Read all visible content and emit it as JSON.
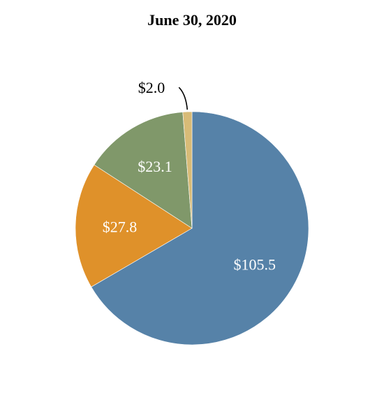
{
  "chart_data": {
    "type": "pie",
    "title": "June 30, 2020",
    "start_angle": "12 o'clock",
    "direction": "clockwise",
    "slices": [
      {
        "label": "$105.5",
        "value": 105.5,
        "color": "#5682a8",
        "label_color": "#ffffff"
      },
      {
        "label": "$27.8",
        "value": 27.8,
        "color": "#df912a",
        "label_color": "#ffffff"
      },
      {
        "label": "$23.1",
        "value": 23.1,
        "color": "#80986a",
        "label_color": "#ffffff"
      },
      {
        "label": "$2.0",
        "value": 2.0,
        "color": "#d8bb77",
        "label_color": "#000000",
        "label_outside": true
      }
    ]
  }
}
